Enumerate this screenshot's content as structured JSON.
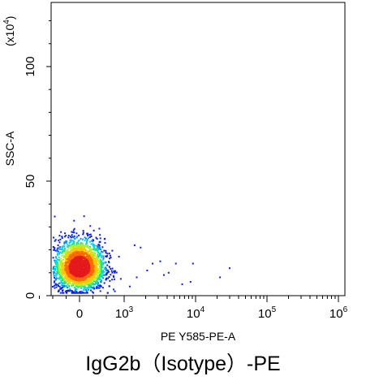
{
  "chart_data": {
    "type": "scatter",
    "caption": "IgG2b（Isotype）-PE",
    "xlabel": "PE Y585-PE-A",
    "ylabel": "SSC-A",
    "y_multiplier": "(x10",
    "y_multiplier_exp": "4",
    "y_multiplier_close": ")",
    "ylim": [
      0,
      128
    ],
    "y_ticks": [
      {
        "value": 0,
        "label": "0"
      },
      {
        "value": 50,
        "label": "50"
      },
      {
        "value": 100,
        "label": "100"
      }
    ],
    "x_scale": "biexponential",
    "x_ticks": [
      {
        "value": 0,
        "base": "0",
        "exp": ""
      },
      {
        "value": 1000,
        "base": "10",
        "exp": "3"
      },
      {
        "value": 10000,
        "base": "10",
        "exp": "4"
      },
      {
        "value": 100000,
        "base": "10",
        "exp": "5"
      },
      {
        "value": 1000000,
        "base": "10",
        "exp": "6"
      }
    ],
    "density_palette": [
      "#0a1ee0",
      "#0087ff",
      "#00d2e8",
      "#1ee57a",
      "#b4f028",
      "#ffc800",
      "#ff6a00",
      "#e41a1c"
    ],
    "populations": [
      {
        "center_x": 0,
        "center_y": 12,
        "spread_x": 280,
        "spread_y": 5.5,
        "count": 2600
      }
    ],
    "outliers": [
      {
        "x": 1400,
        "y": 22
      },
      {
        "x": 1700,
        "y": 21
      },
      {
        "x": 2500,
        "y": 14
      },
      {
        "x": 3200,
        "y": 15
      },
      {
        "x": 4200,
        "y": 10
      },
      {
        "x": 5300,
        "y": 14
      },
      {
        "x": 8500,
        "y": 6
      },
      {
        "x": 9200,
        "y": 14
      },
      {
        "x": 22000,
        "y": 8
      },
      {
        "x": 30000,
        "y": 12
      },
      {
        "x": 1200,
        "y": 4
      },
      {
        "x": 1500,
        "y": 8
      },
      {
        "x": 2100,
        "y": 11
      },
      {
        "x": 3600,
        "y": 9
      },
      {
        "x": 6500,
        "y": 5
      }
    ]
  }
}
